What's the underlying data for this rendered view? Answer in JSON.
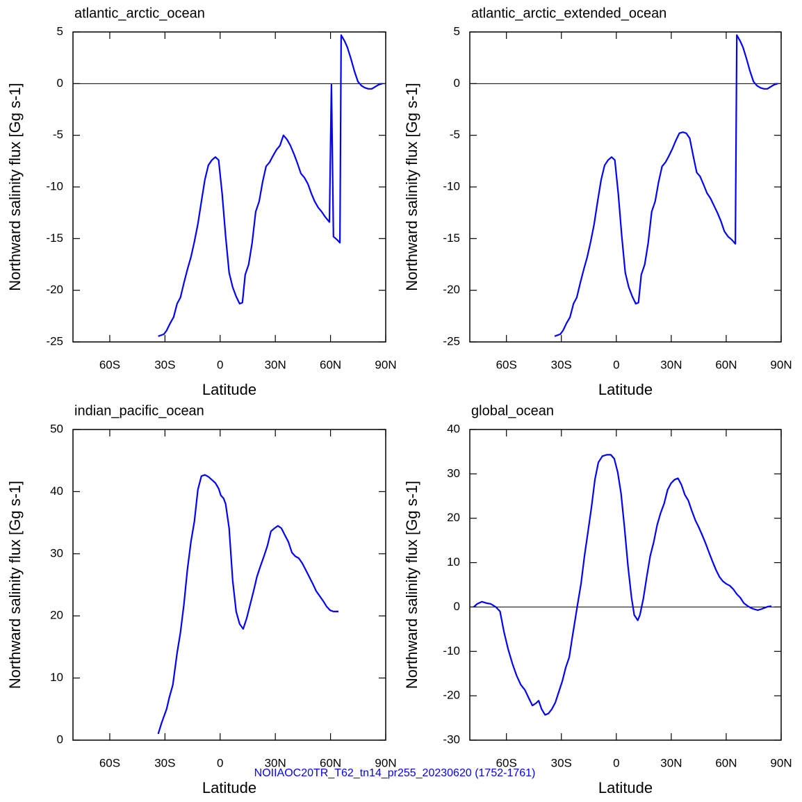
{
  "chart_data": [
    {
      "type": "line",
      "title": "atlantic_arctic_ocean",
      "xlabel": "Latitude",
      "ylabel": "Northward salinity flux [Gg s-1]",
      "color": "#0000ff",
      "xlim": [
        -80,
        90
      ],
      "ylim": [
        -25,
        5
      ],
      "xticks": [
        {
          "value": -60,
          "label": "60S"
        },
        {
          "value": -30,
          "label": "30S"
        },
        0,
        {
          "value": 30,
          "label": "30N"
        },
        {
          "value": 60,
          "label": "60N"
        },
        {
          "value": 90,
          "label": "90N"
        }
      ],
      "yticks": [
        -25,
        -20,
        -15,
        -10,
        -5,
        0,
        5
      ],
      "x": [
        -33.7,
        -30.6,
        -29.1,
        -27.2,
        -25.3,
        -23.4,
        -21.6,
        -19.7,
        -17.8,
        -15.9,
        -14.0,
        -12.1,
        -10.2,
        -8.3,
        -6.4,
        -4.5,
        -2.6,
        -0.8,
        1.1,
        3.0,
        4.9,
        6.8,
        8.7,
        10.6,
        12.1,
        13.6,
        15.5,
        17.4,
        19.3,
        21.2,
        23.1,
        25.0,
        26.9,
        28.7,
        30.6,
        32.5,
        34.4,
        36.3,
        38.2,
        40.1,
        42.0,
        43.9,
        45.8,
        47.7,
        49.5,
        51.4,
        53.3,
        55.2,
        57.1,
        59.4,
        60.5,
        61.6,
        63.5,
        65.1,
        65.8,
        67.7,
        69.2,
        71.1,
        73.0,
        74.9,
        76.8,
        78.7,
        80.6,
        82.5,
        84.3,
        86.2,
        88.1
      ],
      "values": [
        -24.45,
        -24.25,
        -23.9,
        -23.2,
        -22.6,
        -21.3,
        -20.7,
        -19.3,
        -18.0,
        -16.8,
        -15.3,
        -13.6,
        -11.4,
        -9.3,
        -7.9,
        -7.4,
        -7.1,
        -7.4,
        -10.7,
        -14.8,
        -18.3,
        -19.7,
        -20.6,
        -21.3,
        -21.2,
        -18.5,
        -17.5,
        -15.4,
        -12.4,
        -11.4,
        -9.5,
        -8.0,
        -7.6,
        -7.0,
        -6.4,
        -6.0,
        -5.0,
        -5.4,
        -6.0,
        -6.8,
        -7.7,
        -8.7,
        -9.1,
        -9.7,
        -10.6,
        -11.4,
        -12.0,
        -12.4,
        -12.9,
        -13.4,
        -0.1,
        -14.8,
        -15.1,
        -15.4,
        4.7,
        4.1,
        3.5,
        2.4,
        1.2,
        0.2,
        -0.2,
        -0.4,
        -0.5,
        -0.5,
        -0.3,
        -0.1,
        0.0
      ]
    },
    {
      "type": "line",
      "title": "atlantic_arctic_extended_ocean",
      "xlabel": "Latitude",
      "ylabel": "Northward salinity flux [Gg s-1]",
      "color": "#0000ff",
      "xlim": [
        -80,
        90
      ],
      "ylim": [
        -25,
        5
      ],
      "xticks": [
        {
          "value": -60,
          "label": "60S"
        },
        {
          "value": -30,
          "label": "30S"
        },
        0,
        {
          "value": 30,
          "label": "30N"
        },
        {
          "value": 60,
          "label": "60N"
        },
        {
          "value": 90,
          "label": "90N"
        }
      ],
      "yticks": [
        -25,
        -20,
        -15,
        -10,
        -5,
        0,
        5
      ],
      "x": [
        -33.7,
        -30.6,
        -29.1,
        -27.2,
        -25.3,
        -23.4,
        -21.6,
        -19.7,
        -17.8,
        -15.9,
        -14.0,
        -12.1,
        -10.2,
        -8.3,
        -6.4,
        -4.5,
        -2.6,
        -0.8,
        1.1,
        3.0,
        4.9,
        6.8,
        8.7,
        10.6,
        12.1,
        13.6,
        15.5,
        17.4,
        19.3,
        21.2,
        23.1,
        25.0,
        26.9,
        28.7,
        30.6,
        32.5,
        34.4,
        36.3,
        38.2,
        40.1,
        42.0,
        43.9,
        45.8,
        47.7,
        49.5,
        51.4,
        53.3,
        55.2,
        57.1,
        59.0,
        61.0,
        63.0,
        65.0,
        65.8,
        67.7,
        69.2,
        71.1,
        73.0,
        74.9,
        76.8,
        78.7,
        80.6,
        82.5,
        84.3,
        86.2,
        88.1
      ],
      "values": [
        -24.45,
        -24.25,
        -23.9,
        -23.2,
        -22.6,
        -21.3,
        -20.7,
        -19.3,
        -18.0,
        -16.8,
        -15.3,
        -13.6,
        -11.4,
        -9.3,
        -7.9,
        -7.4,
        -7.1,
        -7.4,
        -10.7,
        -14.8,
        -18.3,
        -19.7,
        -20.6,
        -21.3,
        -21.2,
        -18.5,
        -17.5,
        -15.4,
        -12.4,
        -11.4,
        -9.5,
        -8.0,
        -7.6,
        -7.0,
        -6.3,
        -5.5,
        -4.8,
        -4.7,
        -4.8,
        -5.3,
        -7.0,
        -8.6,
        -9.0,
        -9.8,
        -10.6,
        -11.1,
        -11.8,
        -12.5,
        -13.3,
        -14.3,
        -14.8,
        -15.1,
        -15.5,
        4.7,
        4.1,
        3.5,
        2.4,
        1.2,
        0.2,
        -0.2,
        -0.4,
        -0.5,
        -0.5,
        -0.3,
        -0.1,
        0.0
      ]
    },
    {
      "type": "line",
      "title": "indian_pacific_ocean",
      "xlabel": "Latitude",
      "ylabel": "Northward salinity flux [Gg s-1]",
      "color": "#0000ff",
      "xlim": [
        -80,
        90
      ],
      "ylim": [
        0,
        50
      ],
      "xticks": [
        {
          "value": -60,
          "label": "60S"
        },
        {
          "value": -30,
          "label": "30S"
        },
        0,
        {
          "value": 30,
          "label": "30N"
        },
        {
          "value": 60,
          "label": "60N"
        },
        {
          "value": 90,
          "label": "90N"
        }
      ],
      "yticks": [
        0,
        10,
        20,
        30,
        40,
        50
      ],
      "x": [
        -33.7,
        -31.8,
        -29.1,
        -27.6,
        -25.7,
        -23.4,
        -21.6,
        -19.7,
        -17.8,
        -15.9,
        -14.0,
        -12.1,
        -10.2,
        -8.3,
        -6.4,
        -4.5,
        -2.6,
        -0.8,
        0.4,
        1.9,
        3.0,
        4.9,
        6.8,
        8.7,
        10.6,
        12.5,
        14.4,
        16.3,
        18.2,
        20.0,
        21.9,
        23.8,
        25.7,
        27.6,
        29.5,
        31.4,
        33.3,
        35.2,
        37.1,
        39.0,
        40.8,
        42.7,
        44.6,
        46.5,
        48.4,
        50.3,
        52.2,
        54.1,
        56.0,
        57.9,
        59.8,
        61.6,
        64.3
      ],
      "values": [
        1.0,
        2.8,
        5.0,
        6.9,
        8.9,
        14.0,
        17.3,
        21.8,
        27.4,
        31.9,
        35.2,
        40.3,
        42.5,
        42.7,
        42.4,
        41.9,
        41.4,
        40.5,
        39.4,
        38.9,
        38.0,
        34.1,
        25.7,
        20.7,
        18.7,
        17.9,
        19.6,
        21.8,
        24.0,
        26.3,
        28.0,
        29.6,
        31.3,
        33.6,
        34.1,
        34.5,
        34.1,
        33.0,
        31.9,
        30.2,
        29.6,
        29.3,
        28.5,
        27.4,
        26.3,
        25.2,
        24.0,
        23.2,
        22.4,
        21.5,
        20.9,
        20.7,
        20.7
      ]
    },
    {
      "type": "line",
      "title": "global_ocean",
      "xlabel": "Latitude",
      "ylabel": "Northward salinity flux [Gg s-1]",
      "color": "#0000ff",
      "xlim": [
        -80,
        90
      ],
      "ylim": [
        -30,
        40
      ],
      "xticks": [
        {
          "value": -60,
          "label": "60S"
        },
        {
          "value": -30,
          "label": "30S"
        },
        0,
        {
          "value": 30,
          "label": "30N"
        },
        {
          "value": 60,
          "label": "60N"
        },
        {
          "value": 90,
          "label": "90N"
        }
      ],
      "yticks": [
        -30,
        -20,
        -10,
        0,
        10,
        20,
        30,
        40
      ],
      "x": [
        -77.9,
        -76.0,
        -73.4,
        -71.1,
        -68.5,
        -65.8,
        -63.5,
        -61.3,
        -59.0,
        -56.7,
        -54.5,
        -52.2,
        -49.9,
        -47.7,
        -45.8,
        -43.9,
        -42.4,
        -40.8,
        -38.9,
        -37.1,
        -35.2,
        -33.3,
        -31.4,
        -29.5,
        -27.6,
        -25.7,
        -24.2,
        -22.7,
        -21.2,
        -19.3,
        -17.4,
        -15.5,
        -13.6,
        -11.7,
        -9.8,
        -7.6,
        -5.3,
        -3.0,
        -1.1,
        0.8,
        2.6,
        4.5,
        6.4,
        8.3,
        9.8,
        11.7,
        12.9,
        14.7,
        16.6,
        18.5,
        20.4,
        22.3,
        24.2,
        26.1,
        28.0,
        29.9,
        31.8,
        33.7,
        35.6,
        37.4,
        39.3,
        41.2,
        43.1,
        45.0,
        46.9,
        48.8,
        50.7,
        52.6,
        54.5,
        56.3,
        58.2,
        60.1,
        62.0,
        63.9,
        65.8,
        67.7,
        69.6,
        71.5,
        73.4,
        75.3,
        77.2,
        79.0,
        80.9,
        82.8,
        84.7
      ],
      "values": [
        0.0,
        0.7,
        1.2,
        0.9,
        0.7,
        0.0,
        -1.0,
        -5.7,
        -9.6,
        -12.8,
        -15.4,
        -17.5,
        -18.7,
        -20.6,
        -22.2,
        -21.7,
        -21.1,
        -23.0,
        -24.3,
        -24.0,
        -23.0,
        -21.5,
        -19.1,
        -16.7,
        -13.6,
        -11.3,
        -7.3,
        -3.4,
        0.5,
        5.2,
        11.5,
        16.9,
        22.4,
        28.7,
        32.6,
        34.0,
        34.3,
        34.3,
        33.4,
        30.3,
        25.5,
        17.7,
        9.1,
        2.1,
        -1.8,
        -3.0,
        -1.8,
        1.8,
        6.8,
        11.5,
        14.6,
        18.5,
        21.2,
        23.3,
        26.4,
        27.9,
        28.7,
        29.0,
        27.5,
        25.3,
        24.0,
        21.7,
        19.6,
        18.0,
        16.2,
        14.3,
        12.2,
        10.2,
        8.3,
        6.8,
        5.8,
        5.2,
        4.8,
        4.0,
        2.9,
        2.1,
        0.9,
        0.3,
        -0.2,
        -0.5,
        -0.7,
        -0.5,
        -0.2,
        0.1,
        0.2
      ]
    }
  ],
  "footer": "NOIIAOC20TR_T62_tn14_pr255_20230620 (1752-1761)"
}
